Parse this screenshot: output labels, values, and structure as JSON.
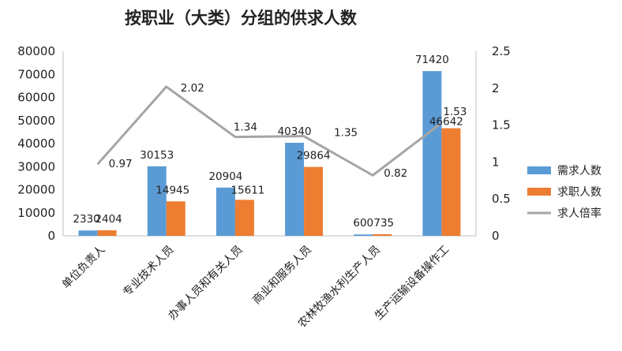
{
  "chart_data": {
    "type": "bar",
    "title": "按职业（大类）分组的供求人数",
    "categories": [
      "单位负责人",
      "专业技术人员",
      "办事人员和有关人员",
      "商业和服务人员",
      "农林牧渔水利生产人员",
      "生产运输设备操作工"
    ],
    "series": [
      {
        "name": "需求人数",
        "type": "bar",
        "axis": "left",
        "color": "#5B9BD5",
        "values": [
          2330,
          30153,
          20904,
          40340,
          600,
          71420
        ],
        "labels": [
          "2330",
          "30153",
          "20904",
          "40340",
          "600",
          "71420"
        ]
      },
      {
        "name": "求职人数",
        "type": "bar",
        "axis": "left",
        "color": "#ED7D31",
        "values": [
          2404,
          14945,
          15611,
          29864,
          735,
          46642
        ],
        "labels": [
          "2404",
          "14945",
          "15611",
          "29864",
          "735",
          "46642"
        ]
      },
      {
        "name": "求人倍率",
        "type": "line",
        "axis": "right",
        "color": "#A5A5A5",
        "values": [
          0.97,
          2.02,
          1.34,
          1.35,
          0.82,
          1.53
        ],
        "labels": [
          "0.97",
          "2.02",
          "1.34",
          "1.35",
          "0.82",
          "1.53"
        ]
      }
    ],
    "y_left": {
      "min": 0,
      "max": 80000,
      "step": 10000,
      "ticks": [
        "0",
        "10000",
        "20000",
        "30000",
        "40000",
        "50000",
        "60000",
        "70000",
        "80000"
      ]
    },
    "y_right": {
      "min": 0,
      "max": 2.5,
      "step": 0.5,
      "ticks": [
        "0",
        "0.5",
        "1",
        "1.5",
        "2",
        "2.5"
      ]
    },
    "grid": false,
    "legend": "right"
  }
}
